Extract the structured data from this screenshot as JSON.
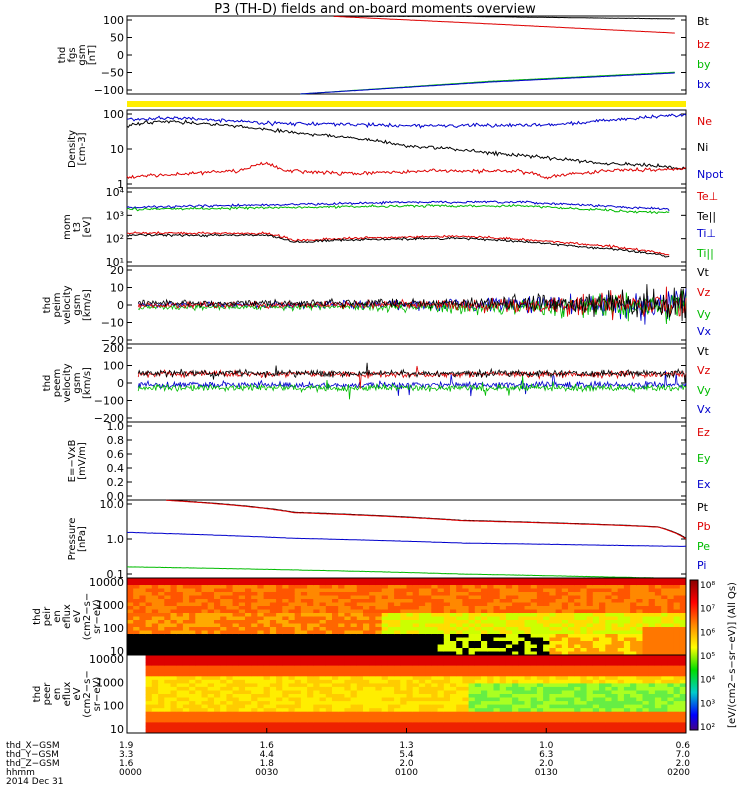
{
  "title": "P3 (TH-D) fields and on-board moments overview",
  "colors": {
    "red": "#dd0000",
    "green": "#00bb00",
    "blue": "#0000cc",
    "black": "#000000",
    "yellow": "#ffee00"
  },
  "chart_data": {
    "type": "line",
    "panels": [
      {
        "id": "fgs",
        "ylabel": [
          "thd",
          "fgs",
          "gsm",
          "[nT]"
        ],
        "yticks": [
          "100",
          "50",
          "0",
          "−50",
          "−100"
        ],
        "ylim": [
          -110,
          105
        ],
        "legend": [
          {
            "label": "Bt",
            "color": "#000000"
          },
          {
            "label": "bz",
            "color": "#dd0000"
          },
          {
            "label": "by",
            "color": "#00bb00"
          },
          {
            "label": "bx",
            "color": "#0000cc"
          }
        ],
        "series": [
          {
            "color": "#000000",
            "points": [
              [
                0.37,
                104
              ],
              [
                0.6,
                104
              ],
              [
                0.98,
                97
              ]
            ]
          },
          {
            "color": "#dd0000",
            "points": [
              [
                0.37,
                104
              ],
              [
                0.6,
                87
              ],
              [
                0.98,
                58
              ]
            ]
          },
          {
            "color": "#00bb00",
            "points": [
              [
                0.31,
                -110
              ],
              [
                0.65,
                -75
              ],
              [
                0.98,
                -50
              ]
            ]
          },
          {
            "color": "#0000cc",
            "points": [
              [
                0.31,
                -110
              ],
              [
                0.65,
                -77
              ],
              [
                0.98,
                -52
              ]
            ]
          }
        ]
      },
      {
        "id": "density",
        "ylabel": [
          "Density",
          "[cm-3]"
        ],
        "yticks": [
          "100",
          "10",
          "1"
        ],
        "ylim": [
          1,
          150
        ],
        "log": true,
        "legend": [
          {
            "label": "Ne",
            "color": "#dd0000"
          },
          {
            "label": "Ni",
            "color": "#000000"
          },
          {
            "label": "Npot",
            "color": "#0000cc"
          }
        ],
        "series": [
          {
            "color": "#0000cc",
            "points": [
              [
                0.0,
                80
              ],
              [
                0.09,
                90
              ],
              [
                0.25,
                65
              ],
              [
                0.5,
                55
              ],
              [
                0.65,
                55
              ],
              [
                0.78,
                60
              ],
              [
                0.87,
                80
              ],
              [
                1.0,
                110
              ]
            ]
          },
          {
            "color": "#000000",
            "points": [
              [
                0.0,
                55
              ],
              [
                0.06,
                75
              ],
              [
                0.15,
                60
              ],
              [
                0.3,
                35
              ],
              [
                0.5,
                15
              ],
              [
                0.7,
                8
              ],
              [
                0.85,
                5
              ],
              [
                1.0,
                3.5
              ]
            ]
          },
          {
            "color": "#dd0000",
            "points": [
              [
                0.0,
                2
              ],
              [
                0.1,
                2.5
              ],
              [
                0.2,
                3
              ],
              [
                0.25,
                5
              ],
              [
                0.28,
                3
              ],
              [
                0.4,
                2.5
              ],
              [
                0.55,
                3
              ],
              [
                0.7,
                3
              ],
              [
                0.75,
                2
              ],
              [
                0.85,
                3
              ],
              [
                1.0,
                3.5
              ]
            ]
          }
        ]
      },
      {
        "id": "mom",
        "ylabel": [
          "mom",
          "t3",
          "[eV]"
        ],
        "yticks": [
          "10⁴",
          "10³",
          "10²",
          "10¹"
        ],
        "ylim": [
          10,
          20000
        ],
        "log": true,
        "legend": [
          {
            "label": "Te⊥",
            "color": "#dd0000"
          },
          {
            "label": "Te||",
            "color": "#000000"
          },
          {
            "label": "Ti⊥",
            "color": "#0000cc"
          },
          {
            "label": "Ti||",
            "color": "#00bb00"
          }
        ],
        "series": [
          {
            "color": "#0000cc",
            "points": [
              [
                0.0,
                3000
              ],
              [
                0.3,
                4000
              ],
              [
                0.5,
                5000
              ],
              [
                0.7,
                5000
              ],
              [
                0.9,
                3000
              ],
              [
                0.97,
                2500
              ]
            ]
          },
          {
            "color": "#00bb00",
            "points": [
              [
                0.0,
                2500
              ],
              [
                0.3,
                3000
              ],
              [
                0.5,
                3500
              ],
              [
                0.7,
                3500
              ],
              [
                0.9,
                2000
              ],
              [
                0.97,
                1800
              ]
            ]
          },
          {
            "color": "#dd0000",
            "points": [
              [
                0.0,
                250
              ],
              [
                0.25,
                240
              ],
              [
                0.3,
                120
              ],
              [
                0.4,
                150
              ],
              [
                0.6,
                180
              ],
              [
                0.8,
                90
              ],
              [
                0.97,
                30
              ]
            ]
          },
          {
            "color": "#000000",
            "points": [
              [
                0.0,
                200
              ],
              [
                0.25,
                200
              ],
              [
                0.3,
                100
              ],
              [
                0.4,
                130
              ],
              [
                0.6,
                150
              ],
              [
                0.8,
                70
              ],
              [
                0.97,
                25
              ]
            ]
          }
        ]
      },
      {
        "id": "peim",
        "ylabel": [
          "thd",
          "peim",
          "velocity",
          "gsm",
          "[km/s]"
        ],
        "yticks": [
          "20",
          "10",
          "0",
          "−10",
          "−20"
        ],
        "ylim": [
          -20,
          20
        ],
        "legend": [
          {
            "label": "Vt",
            "color": "#000000"
          },
          {
            "label": "Vz",
            "color": "#dd0000"
          },
          {
            "label": "Vy",
            "color": "#00bb00"
          },
          {
            "label": "Vx",
            "color": "#0000cc"
          }
        ],
        "series": []
      },
      {
        "id": "peem",
        "ylabel": [
          "thd",
          "peem",
          "velocity",
          "gsm",
          "[km/s]"
        ],
        "yticks": [
          "200",
          "100",
          "0",
          "−100",
          "−200"
        ],
        "ylim": [
          -200,
          200
        ],
        "legend": [
          {
            "label": "Vt",
            "color": "#000000"
          },
          {
            "label": "Vz",
            "color": "#dd0000"
          },
          {
            "label": "Vy",
            "color": "#00bb00"
          },
          {
            "label": "Vx",
            "color": "#0000cc"
          }
        ],
        "series": []
      },
      {
        "id": "efield",
        "ylabel": [
          "E=−VxB",
          "[mV/m]"
        ],
        "yticks": [
          "1.0",
          "0.8",
          "0.6",
          "0.4",
          "0.2",
          "0.0"
        ],
        "ylim": [
          0,
          1
        ],
        "legend": [
          {
            "label": "Ez",
            "color": "#dd0000"
          },
          {
            "label": "Ey",
            "color": "#00bb00"
          },
          {
            "label": "Ex",
            "color": "#0000cc"
          }
        ],
        "series": []
      },
      {
        "id": "pressure",
        "ylabel": [
          "Pressure",
          "[nPa]"
        ],
        "yticks": [
          "10.0",
          "1.0",
          "0.1"
        ],
        "ylim": [
          0.05,
          40
        ],
        "log": true,
        "legend": [
          {
            "label": "Pt",
            "color": "#000000"
          },
          {
            "label": "Pb",
            "color": "#dd0000"
          },
          {
            "label": "Pe",
            "color": "#00bb00"
          },
          {
            "label": "Pi",
            "color": "#0000cc"
          }
        ],
        "series": [
          {
            "color": "#000000",
            "points": [
              [
                0.07,
                40
              ],
              [
                0.3,
                14
              ],
              [
                0.6,
                7
              ],
              [
                0.9,
                4.5
              ],
              [
                0.95,
                4
              ],
              [
                1.0,
                1.5
              ]
            ]
          },
          {
            "color": "#dd0000",
            "points": [
              [
                0.07,
                39
              ],
              [
                0.3,
                13.5
              ],
              [
                0.6,
                6.8
              ],
              [
                0.9,
                4.4
              ],
              [
                0.95,
                3.9
              ],
              [
                1.0,
                1.4
              ]
            ]
          },
          {
            "color": "#0000cc",
            "points": [
              [
                0.0,
                2.5
              ],
              [
                0.3,
                1.5
              ],
              [
                0.6,
                1.0
              ],
              [
                0.9,
                0.8
              ],
              [
                1.0,
                0.75
              ]
            ]
          },
          {
            "color": "#00bb00",
            "points": [
              [
                0.0,
                0.13
              ],
              [
                0.3,
                0.1
              ],
              [
                0.6,
                0.07
              ],
              [
                0.85,
                0.055
              ],
              [
                0.95,
                0.05
              ]
            ]
          }
        ]
      },
      {
        "id": "peir",
        "ylabel": [
          "thd",
          "peir",
          "en",
          "eflux",
          "eV",
          "(cm2−s−",
          "sr−eV)"
        ],
        "yticks": [
          "10000",
          "1000",
          "100",
          "10"
        ],
        "type": "spectrogram"
      },
      {
        "id": "peer",
        "ylabel": [
          "thd",
          "peer",
          "en",
          "eflux",
          "eV",
          "(cm2−s−",
          "sr−eV)"
        ],
        "yticks": [
          "10000",
          "1000",
          "100",
          "10"
        ],
        "type": "spectrogram"
      }
    ],
    "colorbar": {
      "label": "[eV/(cm2−s−sr−eV)] (All Qs)",
      "ticks": [
        "10⁸",
        "10⁷",
        "10⁶",
        "10⁵",
        "10⁴",
        "10³",
        "10²"
      ]
    },
    "xaxis": {
      "ticks": [
        {
          "x": 0.0,
          "xgse": "1.9",
          "ygse": "3.3",
          "zgse": "1.6",
          "hhmm": "0000"
        },
        {
          "x": 0.25,
          "xgse": "1.6",
          "ygse": "4.4",
          "zgse": "1.8",
          "hhmm": "0030"
        },
        {
          "x": 0.5,
          "xgse": "1.3",
          "ygse": "5.4",
          "zgse": "2.0",
          "hhmm": "0100"
        },
        {
          "x": 0.75,
          "xgse": "1.0",
          "ygse": "6.3",
          "zgse": "2.0",
          "hhmm": "0130"
        },
        {
          "x": 1.0,
          "xgse": "0.6",
          "ygse": "7.0",
          "zgse": "2.0",
          "hhmm": "0200"
        }
      ],
      "row_labels": [
        "thd_X−GSM",
        "thd_Y−GSM",
        "thd_Z−GSM",
        "hhmm"
      ],
      "date": "2014 Dec 31"
    }
  }
}
